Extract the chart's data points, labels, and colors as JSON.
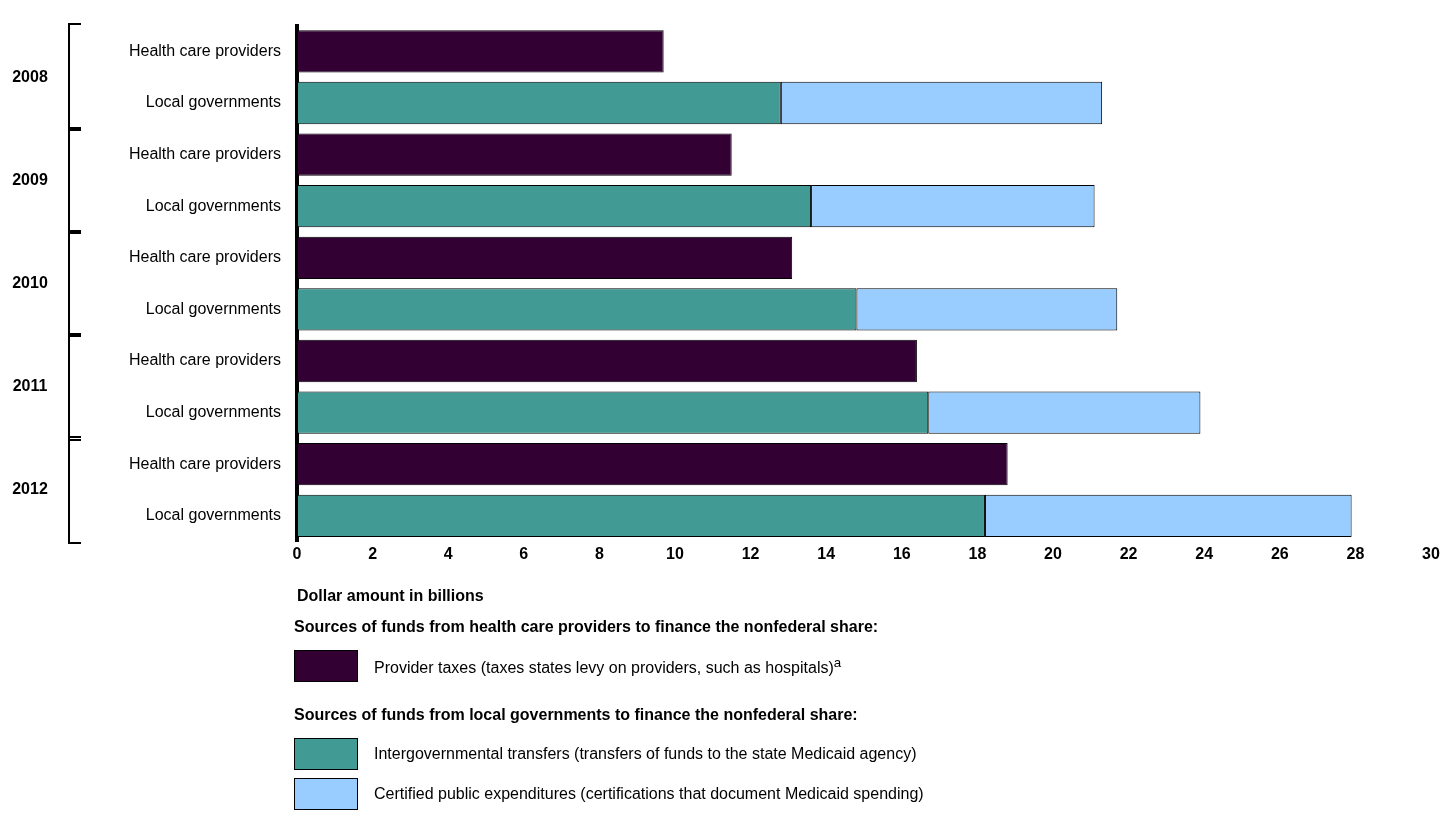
{
  "chart_data": {
    "type": "bar",
    "orientation": "horizontal",
    "stacked": true,
    "categories": [
      "Health care providers",
      "Local governments",
      "Health care providers",
      "Local governments",
      "Health care providers",
      "Local governments",
      "Health care providers",
      "Local governments",
      "Health care providers",
      "Local governments"
    ],
    "series": [
      {
        "name": "Provider taxes (taxes states levy on providers, such as hospitals)$^{a}$",
        "color": "#330033",
        "values": [
          9.7,
          null,
          11.5,
          null,
          13.1,
          null,
          16.4,
          null,
          18.8,
          null
        ]
      },
      {
        "name": "Intergovernmental transfers (transfers of funds to the state Medicaid agency)",
        "color": "#419a94",
        "values": [
          null,
          12.8,
          null,
          13.6,
          null,
          14.8,
          null,
          16.7,
          null,
          18.2
        ]
      },
      {
        "name": "Certified public expenditures (certifications that document Medicaid spending)",
        "color": "#99ccff",
        "values": [
          null,
          8.5,
          null,
          7.5,
          null,
          6.9,
          null,
          7.2,
          null,
          9.7
        ]
      }
    ],
    "xlim": [
      0,
      30
    ],
    "xticks": [
      0,
      2,
      4,
      6,
      8,
      10,
      12,
      14,
      16,
      18,
      20,
      22,
      24,
      26,
      28,
      30
    ],
    "xlabel": "Dollar amount in billions",
    "annotations": [
      "2008",
      "2009",
      "2010",
      "2011",
      "2012",
      "Sources of funds from health care providers to finance the nonfederal share:",
      "Sources of funds from local governments to finance the nonfederal share:"
    ],
    "legend": "bottom",
    "grid": false
  }
}
